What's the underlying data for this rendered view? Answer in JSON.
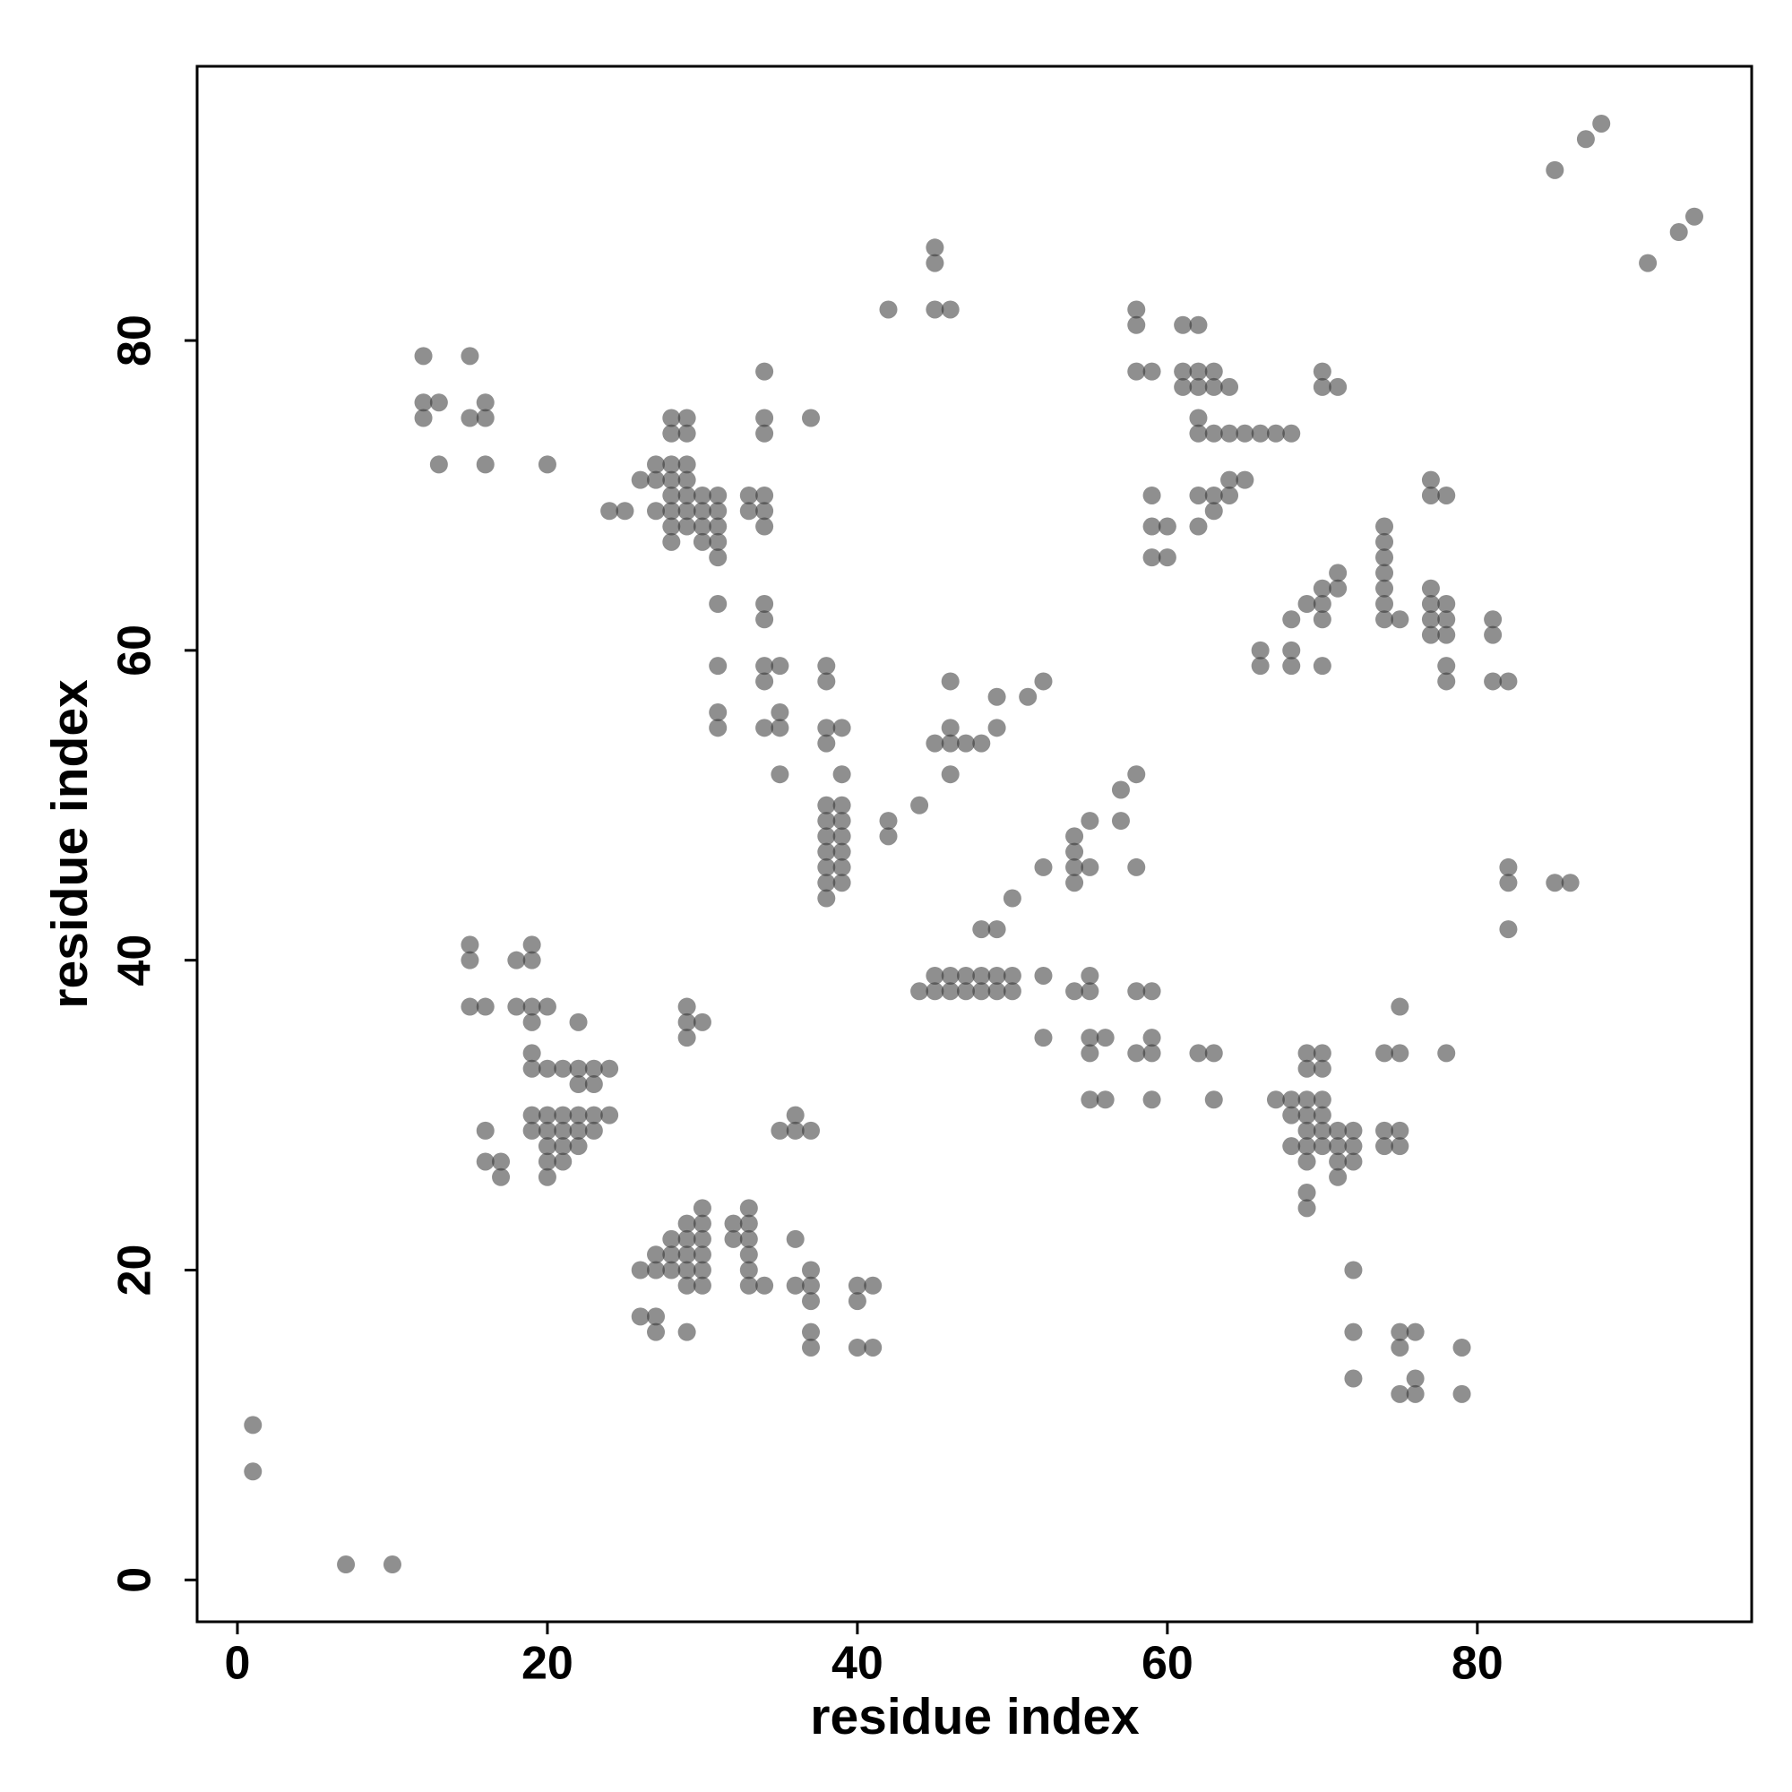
{
  "chart_data": {
    "type": "scatter",
    "x_label": "residue index",
    "y_label": "residue index",
    "xlim": [
      -2.6,
      97.7
    ],
    "ylim": [
      -2.7,
      97.7
    ],
    "xticks": [
      0,
      20,
      40,
      60,
      80
    ],
    "yticks": [
      0,
      20,
      40,
      60,
      80
    ],
    "color": "#333333",
    "x": [
      1,
      1,
      7,
      10,
      85,
      87,
      88,
      91,
      93,
      94,
      12,
      12,
      12,
      13,
      13,
      15,
      15,
      16,
      16,
      16,
      20,
      24,
      25,
      26,
      27,
      27,
      27,
      28,
      28,
      28,
      28,
      28,
      28,
      28,
      28,
      29,
      29,
      29,
      29,
      29,
      29,
      29,
      30,
      30,
      30,
      30,
      31,
      31,
      31,
      31,
      31,
      33,
      33,
      34,
      34,
      34,
      34,
      34,
      34,
      37,
      31,
      31,
      31,
      31,
      34,
      34,
      34,
      34,
      34,
      35,
      35,
      35,
      35,
      38,
      38,
      38,
      38,
      39,
      39,
      38,
      38,
      38,
      38,
      38,
      38,
      38,
      39,
      39,
      39,
      39,
      39,
      39,
      42,
      42,
      44,
      45,
      46,
      46,
      46,
      46,
      47,
      48,
      49,
      49,
      51,
      52,
      42,
      45,
      45,
      45,
      46,
      44,
      45,
      45,
      46,
      46,
      47,
      47,
      48,
      48,
      48,
      49,
      49,
      49,
      50,
      50,
      50,
      52,
      52,
      52,
      54,
      54,
      54,
      54,
      54,
      55,
      55,
      55,
      55,
      55,
      55,
      55,
      56,
      56,
      57,
      57,
      58,
      58,
      58,
      58,
      59,
      59,
      59,
      59,
      62,
      63,
      63,
      58,
      58,
      58,
      59,
      59,
      59,
      59,
      60,
      60,
      61,
      61,
      61,
      62,
      62,
      62,
      62,
      62,
      62,
      62,
      63,
      63,
      63,
      63,
      63,
      64,
      64,
      64,
      64,
      65,
      65,
      66,
      67,
      68,
      70,
      70,
      71,
      66,
      66,
      68,
      68,
      68,
      69,
      70,
      70,
      70,
      70,
      71,
      71,
      74,
      74,
      74,
      74,
      74,
      74,
      74,
      75,
      77,
      77,
      77,
      77,
      77,
      77,
      78,
      78,
      78,
      78,
      78,
      78,
      81,
      81,
      81,
      82,
      82,
      82,
      82,
      85,
      86,
      15,
      15,
      15,
      16,
      18,
      18,
      19,
      19,
      19,
      19,
      19,
      19,
      19,
      19,
      20,
      20,
      20,
      20,
      20,
      20,
      20,
      21,
      21,
      21,
      21,
      21,
      22,
      22,
      22,
      22,
      22,
      22,
      23,
      23,
      23,
      23,
      24,
      24,
      16,
      16,
      17,
      17,
      29,
      29,
      29,
      30,
      35,
      36,
      36,
      37,
      26,
      27,
      27,
      28,
      28,
      28,
      29,
      29,
      29,
      29,
      29,
      30,
      30,
      30,
      30,
      30,
      30,
      32,
      32,
      33,
      33,
      33,
      33,
      33,
      33,
      34,
      36,
      36,
      37,
      37,
      37,
      37,
      37,
      40,
      40,
      41,
      40,
      41,
      26,
      27,
      27,
      29,
      67,
      68,
      68,
      68,
      69,
      69,
      69,
      69,
      69,
      69,
      69,
      69,
      69,
      70,
      70,
      70,
      70,
      70,
      70,
      71,
      71,
      71,
      71,
      72,
      72,
      72,
      74,
      74,
      74,
      75,
      75,
      75,
      75,
      78,
      72,
      72,
      72,
      75,
      75,
      75,
      76,
      76,
      76,
      79,
      79
    ],
    "y": [
      10,
      7,
      1,
      1,
      91,
      93,
      94,
      85,
      87,
      88,
      79,
      76,
      75,
      76,
      72,
      79,
      75,
      76,
      75,
      72,
      72,
      69,
      69,
      71,
      72,
      71,
      69,
      75,
      74,
      72,
      71,
      70,
      69,
      68,
      67,
      75,
      74,
      72,
      71,
      70,
      69,
      68,
      70,
      69,
      68,
      67,
      70,
      69,
      68,
      67,
      66,
      70,
      69,
      78,
      75,
      74,
      70,
      69,
      68,
      75,
      63,
      59,
      56,
      55,
      63,
      62,
      59,
      58,
      55,
      59,
      56,
      55,
      52,
      59,
      58,
      55,
      54,
      55,
      52,
      50,
      49,
      48,
      47,
      46,
      45,
      44,
      50,
      49,
      48,
      47,
      46,
      45,
      49,
      48,
      50,
      54,
      58,
      55,
      54,
      52,
      54,
      54,
      57,
      55,
      57,
      58,
      82,
      86,
      85,
      82,
      82,
      38,
      39,
      38,
      39,
      38,
      39,
      38,
      39,
      38,
      42,
      42,
      39,
      38,
      39,
      38,
      44,
      46,
      39,
      35,
      48,
      47,
      46,
      45,
      38,
      49,
      46,
      39,
      38,
      35,
      34,
      31,
      35,
      31,
      51,
      49,
      52,
      46,
      38,
      34,
      38,
      35,
      34,
      31,
      34,
      34,
      31,
      82,
      81,
      78,
      78,
      70,
      68,
      66,
      68,
      66,
      81,
      78,
      77,
      81,
      78,
      77,
      75,
      74,
      70,
      68,
      78,
      77,
      74,
      70,
      69,
      77,
      74,
      71,
      70,
      74,
      71,
      74,
      74,
      74,
      78,
      77,
      77,
      60,
      59,
      62,
      60,
      59,
      63,
      64,
      63,
      62,
      59,
      65,
      64,
      68,
      67,
      66,
      65,
      64,
      63,
      62,
      62,
      71,
      70,
      64,
      63,
      62,
      61,
      70,
      63,
      62,
      61,
      59,
      58,
      62,
      61,
      58,
      58,
      46,
      45,
      42,
      45,
      45,
      41,
      40,
      37,
      37,
      40,
      37,
      41,
      40,
      37,
      36,
      34,
      33,
      30,
      29,
      37,
      33,
      30,
      29,
      28,
      27,
      26,
      33,
      30,
      29,
      28,
      27,
      36,
      33,
      32,
      30,
      29,
      28,
      33,
      32,
      30,
      29,
      33,
      30,
      29,
      27,
      27,
      26,
      37,
      36,
      35,
      36,
      29,
      30,
      29,
      29,
      20,
      21,
      20,
      22,
      21,
      20,
      23,
      22,
      21,
      20,
      19,
      24,
      23,
      22,
      21,
      20,
      19,
      23,
      22,
      24,
      23,
      22,
      21,
      20,
      19,
      19,
      22,
      19,
      20,
      19,
      18,
      16,
      15,
      19,
      18,
      19,
      15,
      15,
      17,
      17,
      16,
      16,
      31,
      31,
      30,
      28,
      34,
      33,
      31,
      30,
      29,
      28,
      27,
      25,
      24,
      34,
      33,
      31,
      30,
      29,
      28,
      29,
      28,
      27,
      26,
      29,
      28,
      27,
      34,
      29,
      28,
      37,
      34,
      29,
      28,
      34,
      20,
      16,
      13,
      16,
      15,
      12,
      16,
      13,
      12,
      15,
      12
    ]
  }
}
